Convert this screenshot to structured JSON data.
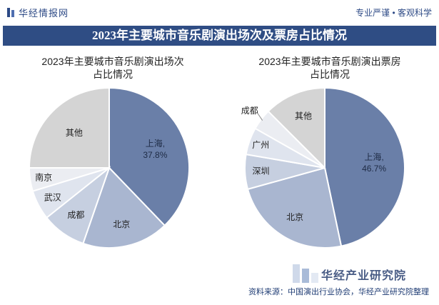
{
  "header": {
    "brand": "华经情报网",
    "slogan": "专业严谨 • 客观科学"
  },
  "main_title": "2023年主要城市音乐剧演出场次及票房占比情况",
  "chart_data": [
    {
      "type": "pie",
      "title_lines": [
        "2023年主要城市音乐剧演出场次",
        "占比情况"
      ],
      "slices": [
        {
          "label": "上海",
          "value": 37.8,
          "value_text": "37.8%",
          "color": "#6a7fa8"
        },
        {
          "label": "北京",
          "value": 17.5,
          "color": "#a9b6d0"
        },
        {
          "label": "成都",
          "value": 9.0,
          "color": "#c6cfe0"
        },
        {
          "label": "武汉",
          "value": 6.0,
          "color": "#dfe4ee"
        },
        {
          "label": "南京",
          "value": 4.7,
          "color": "#ebedf2"
        },
        {
          "label": "其他",
          "value": 25.0,
          "color": "#d4d4d4"
        }
      ]
    },
    {
      "type": "pie",
      "title_lines": [
        "2023年主要城市音乐剧演出票房",
        "占比情况"
      ],
      "slices": [
        {
          "label": "上海",
          "value": 46.7,
          "value_text": "46.7%",
          "color": "#6a7fa8"
        },
        {
          "label": "北京",
          "value": 24.0,
          "color": "#a9b6d0"
        },
        {
          "label": "深圳",
          "value": 7.0,
          "color": "#c6cfe0"
        },
        {
          "label": "广州",
          "value": 5.5,
          "color": "#dfe4ee"
        },
        {
          "label": "成都",
          "value": 4.3,
          "color": "#ebedf2"
        },
        {
          "label": "其他",
          "value": 12.5,
          "color": "#d4d4d4"
        }
      ]
    }
  ],
  "watermark": "华经产业研究院",
  "source": "资料来源：中国演出行业协会，华经产业研究院整理"
}
